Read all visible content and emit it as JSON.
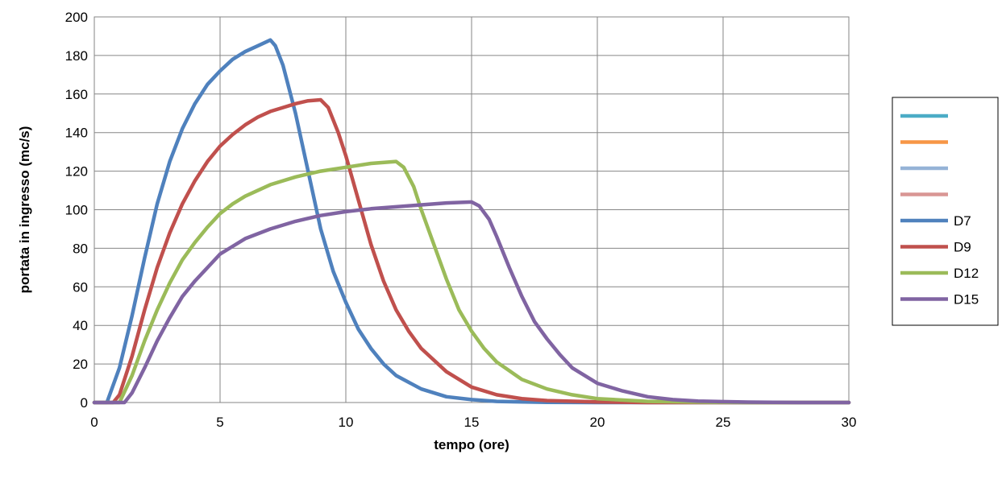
{
  "chart_data": {
    "type": "line",
    "title": "",
    "xlabel": "tempo (ore)",
    "ylabel": "portata in ingresso (mc/s)",
    "xlim": [
      0,
      30
    ],
    "ylim": [
      0,
      200
    ],
    "xticks": [
      0,
      5,
      10,
      15,
      20,
      25,
      30
    ],
    "yticks": [
      0,
      20,
      40,
      60,
      80,
      100,
      120,
      140,
      160,
      180,
      200
    ],
    "grid": true,
    "legend": "right",
    "series": [
      {
        "name": "",
        "color": "#4bacc6",
        "points": []
      },
      {
        "name": "",
        "color": "#f79646",
        "points": []
      },
      {
        "name": "",
        "color": "#95b3d7",
        "points": []
      },
      {
        "name": "",
        "color": "#d99694",
        "points": []
      },
      {
        "name": "D7",
        "color": "#4f81bd",
        "points": [
          [
            0,
            0
          ],
          [
            0.5,
            0
          ],
          [
            1,
            18
          ],
          [
            1.5,
            45
          ],
          [
            2,
            75
          ],
          [
            2.5,
            103
          ],
          [
            3,
            125
          ],
          [
            3.5,
            142
          ],
          [
            4,
            155
          ],
          [
            4.5,
            165
          ],
          [
            5,
            172
          ],
          [
            5.5,
            178
          ],
          [
            6,
            182
          ],
          [
            6.5,
            185
          ],
          [
            7,
            188
          ],
          [
            7.2,
            185
          ],
          [
            7.5,
            175
          ],
          [
            8,
            150
          ],
          [
            8.5,
            120
          ],
          [
            9,
            90
          ],
          [
            9.5,
            68
          ],
          [
            10,
            52
          ],
          [
            10.5,
            38
          ],
          [
            11,
            28
          ],
          [
            11.5,
            20
          ],
          [
            12,
            14
          ],
          [
            13,
            7
          ],
          [
            14,
            3
          ],
          [
            15,
            1.5
          ],
          [
            16,
            0.6
          ],
          [
            18,
            0.1
          ],
          [
            20,
            0
          ],
          [
            30,
            0
          ]
        ]
      },
      {
        "name": "D9",
        "color": "#c0504d",
        "points": [
          [
            0,
            0
          ],
          [
            0.75,
            0
          ],
          [
            1,
            4
          ],
          [
            1.5,
            24
          ],
          [
            2,
            48
          ],
          [
            2.5,
            70
          ],
          [
            3,
            88
          ],
          [
            3.5,
            103
          ],
          [
            4,
            115
          ],
          [
            4.5,
            125
          ],
          [
            5,
            133
          ],
          [
            5.5,
            139
          ],
          [
            6,
            144
          ],
          [
            6.5,
            148
          ],
          [
            7,
            151
          ],
          [
            7.5,
            153
          ],
          [
            8,
            155
          ],
          [
            8.5,
            156.5
          ],
          [
            9,
            157
          ],
          [
            9.3,
            153
          ],
          [
            9.7,
            140
          ],
          [
            10,
            128
          ],
          [
            10.5,
            105
          ],
          [
            11,
            82
          ],
          [
            11.5,
            63
          ],
          [
            12,
            48
          ],
          [
            12.5,
            37
          ],
          [
            13,
            28
          ],
          [
            14,
            16
          ],
          [
            15,
            8
          ],
          [
            16,
            4
          ],
          [
            17,
            2
          ],
          [
            18,
            1
          ],
          [
            20,
            0.3
          ],
          [
            22,
            0
          ],
          [
            30,
            0
          ]
        ]
      },
      {
        "name": "D12",
        "color": "#9bbb59",
        "points": [
          [
            0,
            0
          ],
          [
            1,
            0
          ],
          [
            1.5,
            14
          ],
          [
            2,
            32
          ],
          [
            2.5,
            48
          ],
          [
            3,
            62
          ],
          [
            3.5,
            74
          ],
          [
            4,
            83
          ],
          [
            4.5,
            91
          ],
          [
            5,
            98
          ],
          [
            5.5,
            103
          ],
          [
            6,
            107
          ],
          [
            7,
            113
          ],
          [
            8,
            117
          ],
          [
            9,
            120
          ],
          [
            10,
            122
          ],
          [
            11,
            124
          ],
          [
            12,
            125
          ],
          [
            12.3,
            122
          ],
          [
            12.7,
            112
          ],
          [
            13,
            100
          ],
          [
            13.5,
            82
          ],
          [
            14,
            64
          ],
          [
            14.5,
            48
          ],
          [
            15,
            37
          ],
          [
            15.5,
            28
          ],
          [
            16,
            21
          ],
          [
            17,
            12
          ],
          [
            18,
            7
          ],
          [
            19,
            4
          ],
          [
            20,
            2
          ],
          [
            22,
            0.6
          ],
          [
            24,
            0.2
          ],
          [
            26,
            0
          ],
          [
            30,
            0
          ]
        ]
      },
      {
        "name": "D15",
        "color": "#8064a2",
        "points": [
          [
            0,
            0
          ],
          [
            1.2,
            0
          ],
          [
            1.5,
            5
          ],
          [
            2,
            18
          ],
          [
            2.5,
            32
          ],
          [
            3,
            44
          ],
          [
            3.5,
            55
          ],
          [
            4,
            63
          ],
          [
            4.5,
            70
          ],
          [
            5,
            77
          ],
          [
            5.5,
            81
          ],
          [
            6,
            85
          ],
          [
            7,
            90
          ],
          [
            8,
            94
          ],
          [
            9,
            97
          ],
          [
            10,
            99
          ],
          [
            11,
            100.5
          ],
          [
            12,
            101.5
          ],
          [
            13,
            102.5
          ],
          [
            14,
            103.5
          ],
          [
            15,
            104
          ],
          [
            15.3,
            102
          ],
          [
            15.7,
            95
          ],
          [
            16,
            86
          ],
          [
            16.5,
            70
          ],
          [
            17,
            55
          ],
          [
            17.5,
            42
          ],
          [
            18,
            33
          ],
          [
            18.5,
            25
          ],
          [
            19,
            18
          ],
          [
            20,
            10
          ],
          [
            21,
            6
          ],
          [
            22,
            3
          ],
          [
            23,
            1.5
          ],
          [
            24,
            0.7
          ],
          [
            26,
            0.2
          ],
          [
            28,
            0
          ],
          [
            30,
            0
          ]
        ]
      }
    ]
  }
}
